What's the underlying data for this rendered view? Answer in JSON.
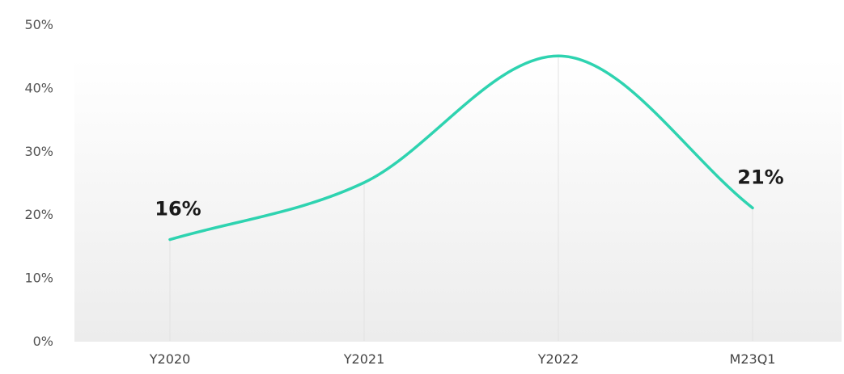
{
  "chart_data": {
    "type": "line",
    "categories": [
      "Y2020",
      "Y2021",
      "Y2022",
      "M23Q1"
    ],
    "series": [
      {
        "values": [
          16,
          25,
          45,
          21
        ],
        "color": "#2ed3b0"
      }
    ],
    "data_labels": [
      {
        "index": 0,
        "text": "16%"
      },
      {
        "index": 3,
        "text": "21%"
      }
    ],
    "y_ticks": [
      "0%",
      "10%",
      "20%",
      "30%",
      "40%",
      "50%"
    ],
    "y_tick_values": [
      0,
      10,
      20,
      30,
      40,
      50
    ],
    "ylim": [
      0,
      50
    ],
    "grid": "vertical",
    "legend": "none",
    "title": "",
    "xlabel": "",
    "ylabel": ""
  }
}
